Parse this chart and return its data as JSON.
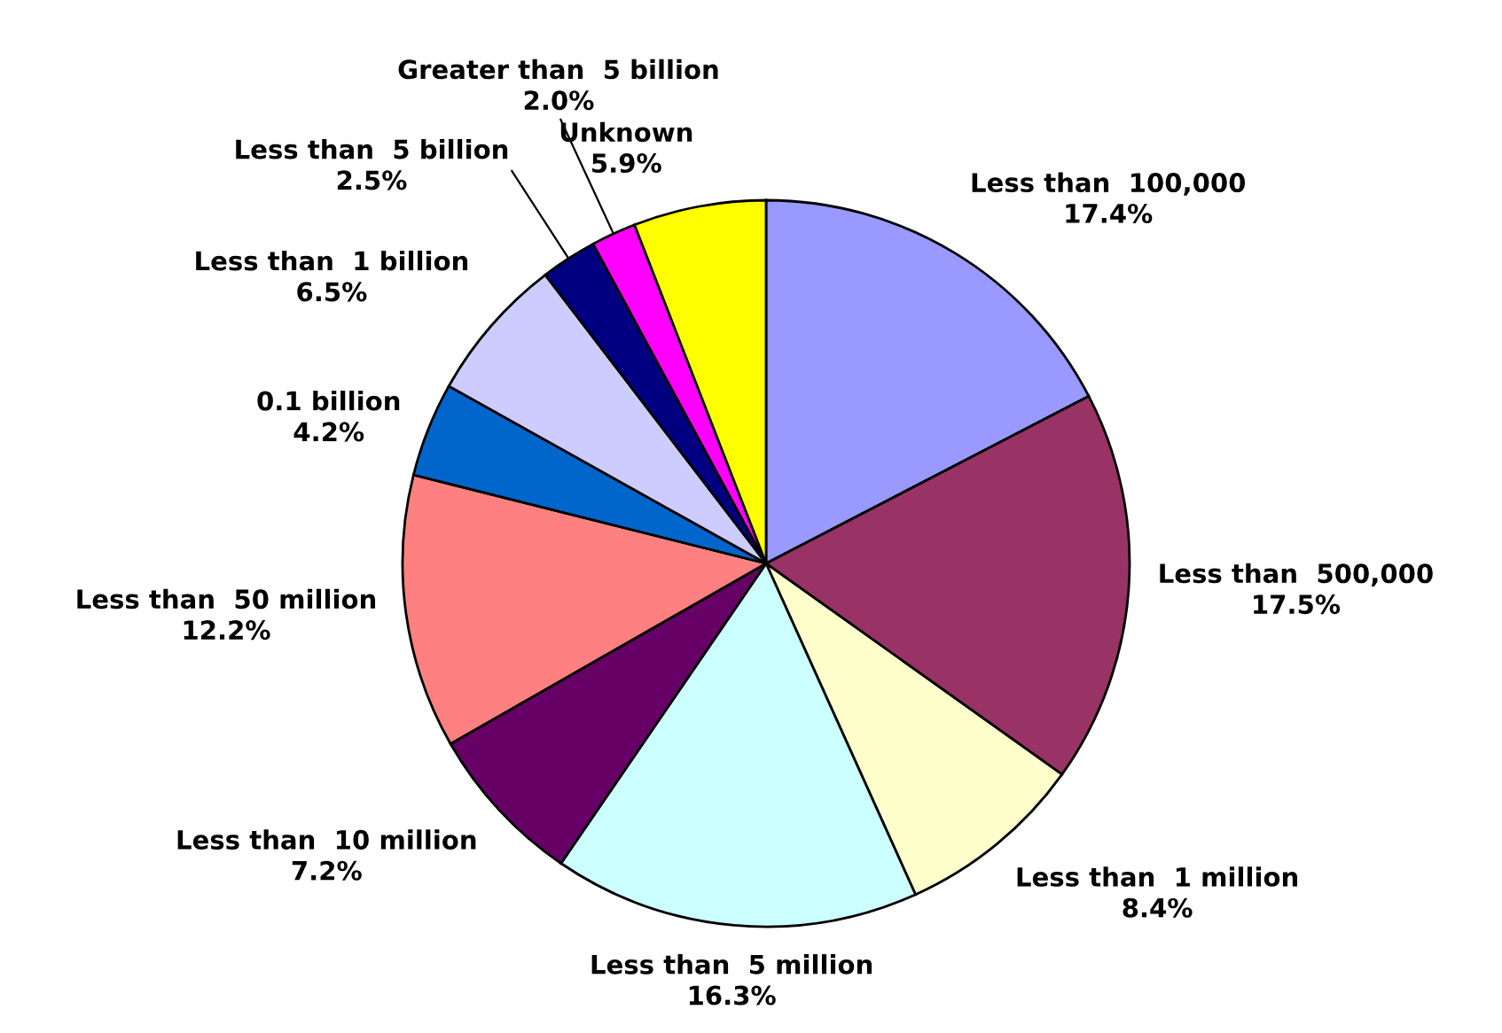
{
  "chart_data": {
    "type": "pie",
    "categories": [
      "Less than  100,000",
      "Less than  500,000",
      "Less than  1 million",
      "Less than  5 million",
      "Less than  10 million",
      "Less than  50 million",
      "0.1 billion",
      "Less than  1 billion",
      "Less than  5 billion",
      "Greater than  5 billion",
      "Unknown"
    ],
    "values": [
      17.4,
      17.5,
      8.4,
      16.3,
      7.2,
      12.2,
      4.2,
      6.5,
      2.5,
      2.0,
      5.9
    ],
    "value_labels": [
      "17.4%",
      "17.5%",
      "8.4%",
      "16.3%",
      "7.2%",
      "12.2%",
      "4.2%",
      "6.5%",
      "2.5%",
      "2.0%",
      "5.9%"
    ],
    "colors": [
      "#9999ff",
      "#993366",
      "#ffffcc",
      "#ccffff",
      "#660066",
      "#ff8080",
      "#0066cc",
      "#ccccff",
      "#000080",
      "#ff00ff",
      "#ffff00"
    ]
  }
}
